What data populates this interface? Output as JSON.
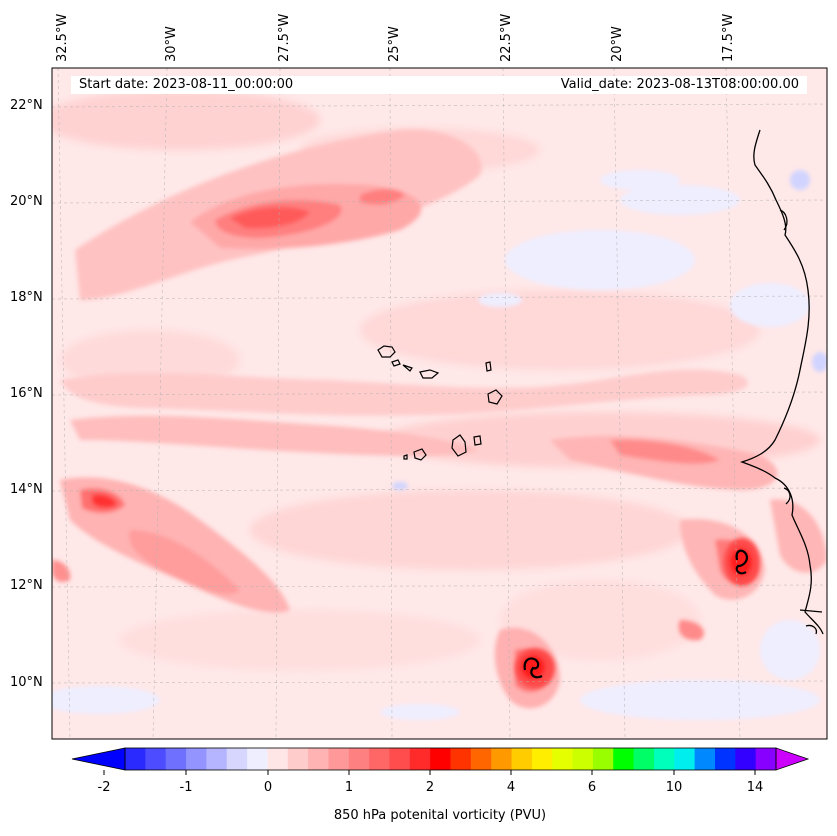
{
  "map": {
    "start_label": "Start date: 2023-08-11_00:00:00",
    "valid_label": "Valid_date: 2023-08-13T08:00:00.00",
    "lon_labels": [
      "32.5°W",
      "30°W",
      "27.5°W",
      "25°W",
      "22.5°W",
      "20°W",
      "17.5°W"
    ],
    "lat_labels": [
      "22°N",
      "20°N",
      "18°N",
      "16°N",
      "14°N",
      "12°N",
      "10°N"
    ],
    "colorbar": {
      "ticks": [
        "-2",
        "-1",
        "0",
        "1",
        "2",
        "4",
        "6",
        "10",
        "14"
      ],
      "label": "850 hPa potenital vorticity (PVU)",
      "colors": [
        "#0000ff",
        "#2a2aff",
        "#4d4dff",
        "#7070ff",
        "#9494ff",
        "#b5b5ff",
        "#d6d6ff",
        "#eeeeff",
        "#ffe6e6",
        "#ffcccc",
        "#ffb3b3",
        "#ff9999",
        "#ff8080",
        "#ff6666",
        "#ff4d4d",
        "#ff2a2a",
        "#ff0000",
        "#ff3300",
        "#ff6600",
        "#ff9900",
        "#ffcc00",
        "#ffee00",
        "#e6ff00",
        "#ccff00",
        "#99ff00",
        "#00ff00",
        "#00ff66",
        "#00ffbb",
        "#00eeee",
        "#0088ff",
        "#0033ff",
        "#3300ff",
        "#8800ff",
        "#cc00ff"
      ]
    },
    "colors": {
      "background": "#ffe8e8",
      "light_pink": "#ffd0d0",
      "pink": "#ffb0b0",
      "red_mid": "#ff8080",
      "red": "#ff5050",
      "blue_light": "#eeeeff",
      "blue": "#d0d4ff",
      "coast": "#000000"
    }
  }
}
